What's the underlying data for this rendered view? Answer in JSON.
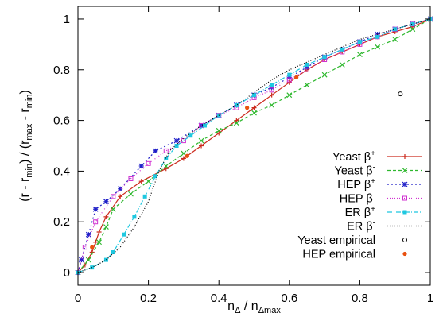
{
  "chart_data": {
    "type": "line",
    "title": "",
    "xlabel": {
      "base": "n",
      "sub": "Δ",
      "sep": " / ",
      "base2": "n",
      "sub2": "Δmax"
    },
    "ylabel": {
      "p1": "(r - r",
      "s1": "min",
      "p2": ") / (r",
      "s2": "max",
      "p3": " - r",
      "s3": "min",
      "p4": ")"
    },
    "xlim": [
      0,
      1
    ],
    "ylim": [
      -0.05,
      1.05
    ],
    "x_ticks": [
      0,
      0.2,
      0.4,
      0.6,
      0.8,
      1
    ],
    "x_tick_labels": [
      "0",
      "0.2",
      "0.4",
      "0.6",
      "0.8",
      "1"
    ],
    "y_ticks": [
      0,
      0.2,
      0.4,
      0.6,
      0.8,
      1
    ],
    "y_tick_labels": [
      "0",
      "0.2",
      "0.4",
      "0.6",
      "0.8",
      "1"
    ],
    "grid": false,
    "legend_position": "right",
    "series": [
      {
        "name": "Yeast",
        "sup": "+",
        "color": "#cc2a1d",
        "dash": "",
        "marker": "plus",
        "points": [
          [
            0,
            0
          ],
          [
            0.02,
            0.03
          ],
          [
            0.04,
            0.08
          ],
          [
            0.05,
            0.12
          ],
          [
            0.06,
            0.16
          ],
          [
            0.08,
            0.22
          ],
          [
            0.12,
            0.3
          ],
          [
            0.18,
            0.36
          ],
          [
            0.25,
            0.41
          ],
          [
            0.3,
            0.45
          ],
          [
            0.35,
            0.5
          ],
          [
            0.4,
            0.55
          ],
          [
            0.45,
            0.6
          ],
          [
            0.5,
            0.65
          ],
          [
            0.55,
            0.7
          ],
          [
            0.6,
            0.75
          ],
          [
            0.65,
            0.8
          ],
          [
            0.7,
            0.84
          ],
          [
            0.75,
            0.87
          ],
          [
            0.8,
            0.9
          ],
          [
            0.85,
            0.93
          ],
          [
            0.9,
            0.95
          ],
          [
            0.95,
            0.97
          ],
          [
            1,
            1
          ]
        ]
      },
      {
        "name": "Yeast",
        "sup": "-",
        "color": "#2eb82e",
        "dash": "4,3",
        "marker": "cross",
        "points": [
          [
            0,
            0
          ],
          [
            0.03,
            0.05
          ],
          [
            0.06,
            0.12
          ],
          [
            0.08,
            0.18
          ],
          [
            0.1,
            0.25
          ],
          [
            0.15,
            0.31
          ],
          [
            0.2,
            0.36
          ],
          [
            0.25,
            0.42
          ],
          [
            0.3,
            0.47
          ],
          [
            0.35,
            0.52
          ],
          [
            0.4,
            0.56
          ],
          [
            0.45,
            0.59
          ],
          [
            0.5,
            0.63
          ],
          [
            0.55,
            0.66
          ],
          [
            0.6,
            0.7
          ],
          [
            0.65,
            0.74
          ],
          [
            0.7,
            0.78
          ],
          [
            0.75,
            0.82
          ],
          [
            0.8,
            0.86
          ],
          [
            0.85,
            0.89
          ],
          [
            0.9,
            0.92
          ],
          [
            0.95,
            0.96
          ],
          [
            1,
            1
          ]
        ]
      },
      {
        "name": "HEP",
        "sup": "+",
        "color": "#2020c8",
        "dash": "2,3",
        "marker": "star",
        "points": [
          [
            0,
            0
          ],
          [
            0.01,
            0.05
          ],
          [
            0.03,
            0.15
          ],
          [
            0.05,
            0.25
          ],
          [
            0.08,
            0.28
          ],
          [
            0.12,
            0.33
          ],
          [
            0.18,
            0.42
          ],
          [
            0.22,
            0.48
          ],
          [
            0.28,
            0.52
          ],
          [
            0.35,
            0.58
          ],
          [
            0.4,
            0.62
          ],
          [
            0.45,
            0.66
          ],
          [
            0.5,
            0.7
          ],
          [
            0.55,
            0.73
          ],
          [
            0.6,
            0.77
          ],
          [
            0.65,
            0.81
          ],
          [
            0.7,
            0.85
          ],
          [
            0.75,
            0.88
          ],
          [
            0.8,
            0.91
          ],
          [
            0.85,
            0.94
          ],
          [
            0.9,
            0.96
          ],
          [
            0.95,
            0.98
          ],
          [
            1,
            1
          ]
        ]
      },
      {
        "name": "HEP",
        "sup": "-",
        "color": "#d030d0",
        "dash": "1,2",
        "marker": "square",
        "points": [
          [
            0,
            0
          ],
          [
            0.02,
            0.1
          ],
          [
            0.05,
            0.2
          ],
          [
            0.1,
            0.3
          ],
          [
            0.15,
            0.37
          ],
          [
            0.2,
            0.43
          ],
          [
            0.25,
            0.48
          ],
          [
            0.3,
            0.52
          ],
          [
            0.35,
            0.58
          ],
          [
            0.4,
            0.62
          ],
          [
            0.45,
            0.65
          ],
          [
            0.5,
            0.69
          ],
          [
            0.55,
            0.72
          ],
          [
            0.6,
            0.76
          ],
          [
            0.65,
            0.8
          ],
          [
            0.7,
            0.84
          ],
          [
            0.75,
            0.87
          ],
          [
            0.8,
            0.9
          ],
          [
            0.85,
            0.93
          ],
          [
            0.9,
            0.96
          ],
          [
            0.95,
            0.98
          ],
          [
            1,
            1
          ]
        ]
      },
      {
        "name": "ER",
        "sup": "+",
        "color": "#1ec8e0",
        "dash": "6,2,1,2",
        "marker": "fsquare",
        "points": [
          [
            0,
            0
          ],
          [
            0.04,
            0.02
          ],
          [
            0.08,
            0.05
          ],
          [
            0.1,
            0.08
          ],
          [
            0.13,
            0.15
          ],
          [
            0.16,
            0.22
          ],
          [
            0.19,
            0.3
          ],
          [
            0.22,
            0.38
          ],
          [
            0.25,
            0.45
          ],
          [
            0.28,
            0.5
          ],
          [
            0.32,
            0.54
          ],
          [
            0.36,
            0.58
          ],
          [
            0.4,
            0.62
          ],
          [
            0.45,
            0.66
          ],
          [
            0.5,
            0.7
          ],
          [
            0.55,
            0.74
          ],
          [
            0.6,
            0.78
          ],
          [
            0.65,
            0.82
          ],
          [
            0.7,
            0.85
          ],
          [
            0.75,
            0.88
          ],
          [
            0.8,
            0.91
          ],
          [
            0.85,
            0.93
          ],
          [
            0.9,
            0.96
          ],
          [
            0.95,
            0.98
          ],
          [
            1,
            1
          ]
        ]
      },
      {
        "name": "ER",
        "sup": "-",
        "color": "#000000",
        "dash": "1,2",
        "marker": "none",
        "points": [
          [
            0,
            0
          ],
          [
            0.04,
            0.02
          ],
          [
            0.08,
            0.05
          ],
          [
            0.12,
            0.1
          ],
          [
            0.16,
            0.18
          ],
          [
            0.2,
            0.28
          ],
          [
            0.23,
            0.4
          ],
          [
            0.26,
            0.48
          ],
          [
            0.3,
            0.53
          ],
          [
            0.35,
            0.58
          ],
          [
            0.4,
            0.62
          ],
          [
            0.45,
            0.66
          ],
          [
            0.5,
            0.71
          ],
          [
            0.55,
            0.76
          ],
          [
            0.6,
            0.8
          ],
          [
            0.65,
            0.83
          ],
          [
            0.7,
            0.86
          ],
          [
            0.75,
            0.89
          ],
          [
            0.8,
            0.92
          ],
          [
            0.85,
            0.94
          ],
          [
            0.9,
            0.96
          ],
          [
            0.95,
            0.98
          ],
          [
            1,
            1
          ]
        ]
      }
    ],
    "empirical": [
      {
        "name": "Yeast empirical",
        "color": "#000000",
        "marker": "circle",
        "points": [
          [
            0.915,
            0.705
          ]
        ]
      },
      {
        "name": "HEP empirical",
        "color": "#e8500f",
        "marker": "dot",
        "points": [
          [
            0.04,
            0.1
          ],
          [
            0.31,
            0.46
          ],
          [
            0.48,
            0.65
          ],
          [
            0.62,
            0.77
          ]
        ]
      }
    ]
  }
}
